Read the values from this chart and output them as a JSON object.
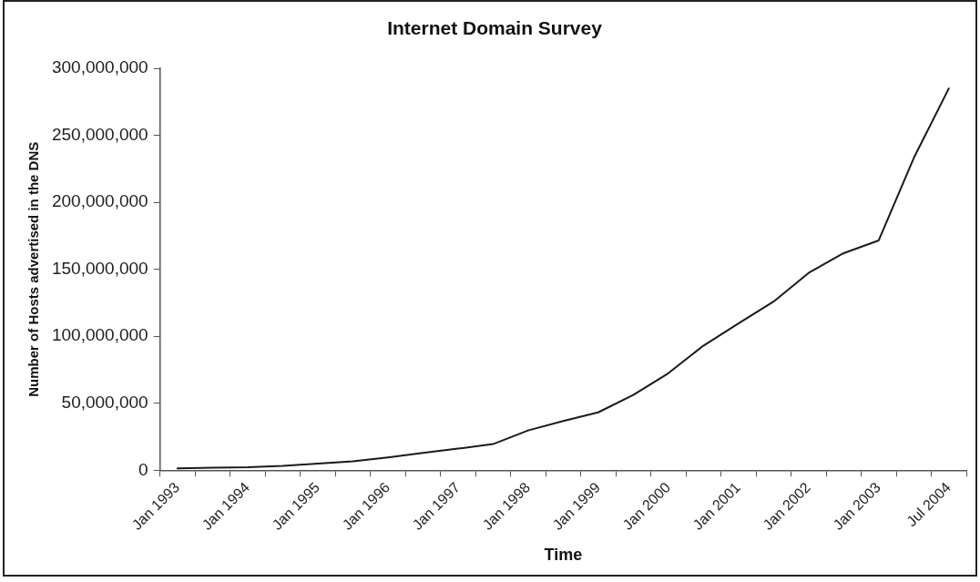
{
  "chart_data": {
    "type": "line",
    "title": "Internet Domain Survey",
    "xlabel": "Time",
    "ylabel": "Number of Hosts advertised in the DNS",
    "categories": [
      "Jan 1993",
      null,
      "Jan 1994",
      null,
      "Jan 1995",
      null,
      "Jan 1996",
      null,
      "Jan 1997",
      null,
      "Jan 1998",
      null,
      "Jan 1999",
      null,
      "Jan 2000",
      null,
      "Jan 2001",
      null,
      "Jan 2002",
      null,
      "Jan 2003",
      null,
      "Jul 2004"
    ],
    "series": [
      {
        "color": "#1a1a1a",
        "values": [
          1300000,
          1800000,
          2200000,
          3200000,
          4900000,
          6600000,
          9500000,
          12900000,
          16100000,
          19500000,
          29700000,
          36700000,
          43200000,
          56200000,
          72400000,
          93000000,
          109600000,
          125900000,
          147300000,
          162100000,
          171600000,
          233100000,
          285100000
        ]
      }
    ],
    "ylim": [
      0,
      300000000
    ],
    "yticks": [
      0,
      {
        "value": 50000000,
        "label": "50,000,000"
      },
      {
        "value": 100000000,
        "label": "100,000,000"
      },
      {
        "value": 150000000,
        "label": "150,000,000"
      },
      {
        "value": 200000000,
        "label": "200,000,000"
      },
      {
        "value": 250000000,
        "label": "250,000,000"
      },
      {
        "value": 300000000,
        "label": "300,000,000"
      }
    ],
    "grid": false,
    "legend": false,
    "marker": "none",
    "line_style": "solid"
  }
}
